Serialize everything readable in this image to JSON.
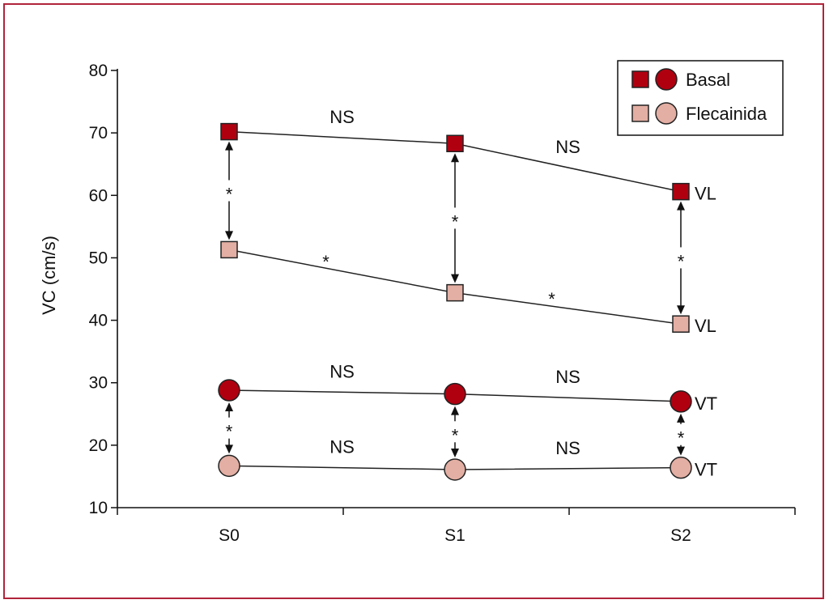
{
  "chart_data": {
    "type": "line",
    "ylabel": "VC (cm/s)",
    "xlabel": "",
    "title": "",
    "ylim": [
      10,
      80
    ],
    "yticks": [
      10,
      20,
      30,
      40,
      50,
      60,
      70,
      80
    ],
    "categories": [
      "S0",
      "S1",
      "S2"
    ],
    "grid": false,
    "legend_position": "top-right",
    "series": [
      {
        "name": "Basal",
        "group": "VL",
        "marker": "square",
        "color": "#b00010",
        "values": [
          70.2,
          68.3,
          60.6
        ],
        "end_label": "VL"
      },
      {
        "name": "Flecainida",
        "group": "VL",
        "marker": "square",
        "color": "#e3aea3",
        "values": [
          51.3,
          44.4,
          39.4
        ],
        "end_label": "VL"
      },
      {
        "name": "Basal",
        "group": "VT",
        "marker": "circle",
        "color": "#b00010",
        "values": [
          28.8,
          28.2,
          27.0
        ],
        "end_label": "VT"
      },
      {
        "name": "Flecainida",
        "group": "VT",
        "marker": "circle",
        "color": "#e3aea3",
        "values": [
          16.7,
          16.1,
          16.4
        ],
        "end_label": "VT"
      }
    ],
    "segment_annotations": [
      {
        "series": 0,
        "segment": 0,
        "text": "NS"
      },
      {
        "series": 0,
        "segment": 1,
        "text": "NS"
      },
      {
        "series": 1,
        "segment": 0,
        "text": "*"
      },
      {
        "series": 1,
        "segment": 1,
        "text": "*"
      },
      {
        "series": 2,
        "segment": 0,
        "text": "NS"
      },
      {
        "series": 2,
        "segment": 1,
        "text": "NS"
      },
      {
        "series": 3,
        "segment": 0,
        "text": "NS"
      },
      {
        "series": 3,
        "segment": 1,
        "text": "NS"
      }
    ],
    "comparisons": [
      {
        "top": 0,
        "bottom": 1,
        "category": 0,
        "text": "*"
      },
      {
        "top": 0,
        "bottom": 1,
        "category": 1,
        "text": "*"
      },
      {
        "top": 0,
        "bottom": 1,
        "category": 2,
        "text": "*"
      },
      {
        "top": 2,
        "bottom": 3,
        "category": 0,
        "text": "*"
      },
      {
        "top": 2,
        "bottom": 3,
        "category": 1,
        "text": "*"
      },
      {
        "top": 2,
        "bottom": 3,
        "category": 2,
        "text": "*"
      }
    ],
    "legend": [
      {
        "label": "Basal",
        "color": "#b00010"
      },
      {
        "label": "Flecainida",
        "color": "#e3aea3"
      }
    ]
  }
}
